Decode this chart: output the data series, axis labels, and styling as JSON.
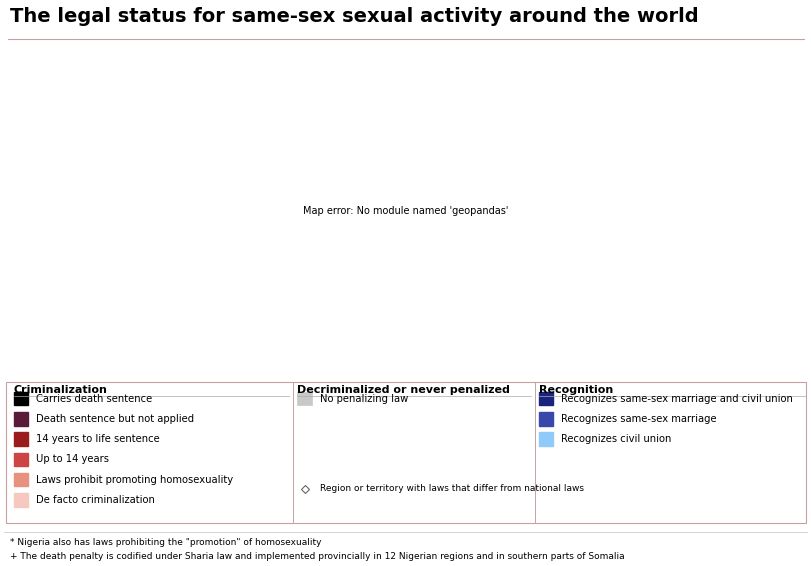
{
  "title": "The legal status for same-sex sexual activity around the world",
  "title_fontsize": 14,
  "background_color": "#ffffff",
  "ocean_color": "#ffffff",
  "legend_border_color": "#c8a0a0",
  "default_color": "#e0e0e0",
  "criminalization": {
    "header": "Criminalization",
    "items": [
      {
        "label": "Carries death sentence",
        "color": "#000000"
      },
      {
        "label": "Death sentence but not applied",
        "color": "#5c1a3a"
      },
      {
        "label": "14 years to life sentence",
        "color": "#9b1c1c"
      },
      {
        "label": "Up to 14 years",
        "color": "#cc4444"
      },
      {
        "label": "Laws prohibit promoting homosexuality",
        "color": "#e8917f"
      },
      {
        "label": "De facto criminalization",
        "color": "#f5c8c0"
      }
    ]
  },
  "decriminalized": {
    "header": "Decriminalized or never penalized",
    "items": [
      {
        "label": "No penalizing law",
        "color": "#c8c8c8"
      }
    ]
  },
  "recognition": {
    "header": "Recognition",
    "items": [
      {
        "label": "Recognizes same-sex marriage and civil union",
        "color": "#1a237e"
      },
      {
        "label": "Recognizes same-sex marriage",
        "color": "#3949ab"
      },
      {
        "label": "Recognizes civil union",
        "color": "#90caf9"
      }
    ]
  },
  "diamond_note": "Region or territory with laws that differ from national laws",
  "footnote1": "* Nigeria also has laws prohibiting the \"promotion\" of homosexuality",
  "footnote2": "+ The death penalty is codified under Sharia law and implemented provincially in 12 Nigerian regions and in southern parts of Somalia",
  "country_colors": {
    "United States of America": "#1a237e",
    "Canada": "#1a237e",
    "Mexico": "#1a237e",
    "Brazil": "#1a237e",
    "Argentina": "#1a237e",
    "Uruguay": "#1a237e",
    "Colombia": "#1a237e",
    "Ecuador": "#1a237e",
    "Bolivia": "#cc4444",
    "Peru": "#cc4444",
    "Chile": "#90caf9",
    "Venezuela": "#cc4444",
    "Guyana": "#cc4444",
    "Suriname": "#cc4444",
    "Cuba": "#c8c8c8",
    "Haiti": "#cc4444",
    "Dominican Rep.": "#cc4444",
    "Jamaica": "#9b1c1c",
    "Guatemala": "#cc4444",
    "Honduras": "#cc4444",
    "El Salvador": "#cc4444",
    "Nicaragua": "#c8c8c8",
    "Costa Rica": "#1a237e",
    "Panama": "#cc4444",
    "Paraguay": "#c8c8c8",
    "Greenland": "#1a237e",
    "Iceland": "#1a237e",
    "Norway": "#1a237e",
    "Sweden": "#1a237e",
    "Finland": "#1a237e",
    "Denmark": "#1a237e",
    "United Kingdom": "#1a237e",
    "Ireland": "#1a237e",
    "Netherlands": "#1a237e",
    "Belgium": "#1a237e",
    "Luxembourg": "#1a237e",
    "France": "#1a237e",
    "Spain": "#1a237e",
    "Portugal": "#1a237e",
    "Germany": "#1a237e",
    "Austria": "#90caf9",
    "Switzerland": "#90caf9",
    "Italy": "#90caf9",
    "Malta": "#1a237e",
    "Greece": "#c8c8c8",
    "Croatia": "#90caf9",
    "Slovenia": "#1a237e",
    "Czechia": "#c8c8c8",
    "Slovakia": "#c8c8c8",
    "Hungary": "#c8c8c8",
    "Poland": "#c8c8c8",
    "Romania": "#c8c8c8",
    "Bulgaria": "#c8c8c8",
    "Serbia": "#c8c8c8",
    "Bosnia and Herz.": "#c8c8c8",
    "Montenegro": "#c8c8c8",
    "North Macedonia": "#c8c8c8",
    "Albania": "#c8c8c8",
    "Kosovo": "#c8c8c8",
    "Latvia": "#c8c8c8",
    "Lithuania": "#c8c8c8",
    "Estonia": "#c8c8c8",
    "Belarus": "#c8c8c8",
    "Ukraine": "#c8c8c8",
    "Moldova": "#c8c8c8",
    "Russia": "#e8917f",
    "Georgia": "#cc4444",
    "Armenia": "#c8c8c8",
    "Azerbaijan": "#c8c8c8",
    "Turkey": "#c8c8c8",
    "Cyprus": "#c8c8c8",
    "Kazakhstan": "#cc4444",
    "Uzbekistan": "#000000",
    "Turkmenistan": "#000000",
    "Kyrgyzstan": "#cc4444",
    "Tajikistan": "#cc4444",
    "Afghanistan": "#000000",
    "Iran": "#000000",
    "Iraq": "#cc4444",
    "Syria": "#cc4444",
    "Lebanon": "#cc4444",
    "Jordan": "#cc4444",
    "Israel": "#3949ab",
    "Palestine": "#000000",
    "Saudi Arabia": "#000000",
    "Yemen": "#000000",
    "Oman": "#9b1c1c",
    "United Arab Emirates": "#9b1c1c",
    "Qatar": "#000000",
    "Bahrain": "#9b1c1c",
    "Kuwait": "#9b1c1c",
    "Egypt": "#cc4444",
    "Libya": "#cc4444",
    "Tunisia": "#cc4444",
    "Algeria": "#cc4444",
    "Morocco": "#cc4444",
    "W. Sahara": "#c8c8c8",
    "Mauritania": "#000000",
    "Mali": "#cc4444",
    "Niger": "#cc4444",
    "Chad": "#cc4444",
    "Sudan": "#000000",
    "S. Sudan": "#cc4444",
    "Ethiopia": "#9b1c1c",
    "Eritrea": "#9b1c1c",
    "Djibouti": "#cc4444",
    "Somalia": "#000000",
    "Kenya": "#9b1c1c",
    "Uganda": "#000000",
    "Rwanda": "#c8c8c8",
    "Burundi": "#9b1c1c",
    "Tanzania": "#9b1c1c",
    "Mozambique": "#c8c8c8",
    "Madagascar": "#c8c8c8",
    "Zimbabwe": "#9b1c1c",
    "Zambia": "#9b1c1c",
    "Malawi": "#9b1c1c",
    "South Africa": "#1a237e",
    "Lesotho": "#c8c8c8",
    "eSwatini": "#9b1c1c",
    "Namibia": "#c8c8c8",
    "Botswana": "#c8c8c8",
    "Angola": "#cc4444",
    "Congo": "#cc4444",
    "Dem. Rep. Congo": "#9b1c1c",
    "Central African Rep.": "#cc4444",
    "Cameroon": "#9b1c1c",
    "Nigeria": "#000000",
    "Benin": "#c8c8c8",
    "Togo": "#cc4444",
    "Ghana": "#9b1c1c",
    "Côte d'Ivoire": "#c8c8c8",
    "Liberia": "#9b1c1c",
    "Sierra Leone": "#9b1c1c",
    "Guinea": "#cc4444",
    "Guinea-Bissau": "#c8c8c8",
    "Gambia": "#9b1c1c",
    "Senegal": "#9b1c1c",
    "Burkina Faso": "#c8c8c8",
    "Gabon": "#c8c8c8",
    "Eq. Guinea": "#c8c8c8",
    "São Tomé and Príncipe": "#c8c8c8",
    "Cape Verde": "#c8c8c8",
    "Comoros": "#9b1c1c",
    "Seychelles": "#9b1c1c",
    "Mauritius": "#9b1c1c",
    "Maldives": "#000000",
    "India": "#9b1c1c",
    "Pakistan": "#000000",
    "Bangladesh": "#9b1c1c",
    "Sri Lanka": "#9b1c1c",
    "Nepal": "#c8c8c8",
    "Bhutan": "#cc4444",
    "Myanmar": "#9b1c1c",
    "Thailand": "#c8c8c8",
    "Laos": "#c8c8c8",
    "Vietnam": "#c8c8c8",
    "Cambodia": "#c8c8c8",
    "Malaysia": "#9b1c1c",
    "Singapore": "#9b1c1c",
    "Indonesia": "#cc4444",
    "Philippines": "#c8c8c8",
    "China": "#c8c8c8",
    "Mongolia": "#c8c8c8",
    "North Korea": "#cc4444",
    "South Korea": "#c8c8c8",
    "Japan": "#c8c8c8",
    "Taiwan": "#3949ab",
    "Australia": "#1a237e",
    "New Zealand": "#1a237e",
    "Papua New Guinea": "#9b1c1c",
    "Fiji": "#cc4444",
    "Timor-Leste": "#c8c8c8"
  }
}
